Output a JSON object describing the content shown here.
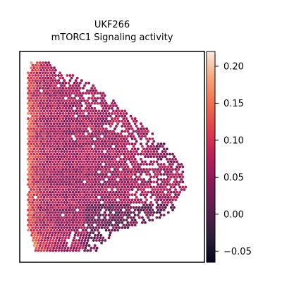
{
  "chart_data": {
    "type": "heatmap",
    "subtype": "spatial-hexbin",
    "title": "UKF266",
    "subtitle": "mTORC1 Signaling activity",
    "xlabel": "",
    "ylabel": "",
    "axes_ticks": "none",
    "grid": false,
    "colormap": "rocket",
    "colorbar": {
      "placement": "right",
      "range": [
        -0.065,
        0.22
      ],
      "ticks": [
        {
          "value": 0.2,
          "label": "0.20"
        },
        {
          "value": 0.15,
          "label": "0.15"
        },
        {
          "value": 0.1,
          "label": "0.10"
        },
        {
          "value": 0.05,
          "label": "0.05"
        },
        {
          "value": 0.0,
          "label": "0.00"
        },
        {
          "value": -0.05,
          "label": "−0.05"
        }
      ]
    },
    "spatial_pattern": {
      "high_region": "left edge",
      "low_region": "lower-right",
      "typical_value": 0.06
    }
  }
}
